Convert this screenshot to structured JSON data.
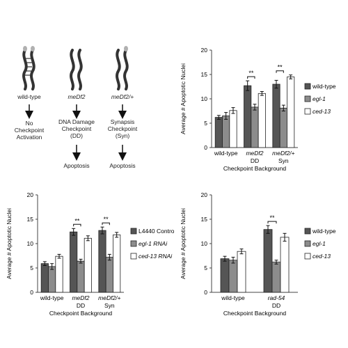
{
  "schematic": {
    "columns": [
      {
        "genotype": "wild-type",
        "italic": false,
        "outcome": [
          "No",
          "Checkpoint",
          "Activation"
        ],
        "final": ""
      },
      {
        "genotype": "meDf2",
        "italic": true,
        "outcome": [
          "DNA Damage",
          "Checkpoint",
          "(DD)"
        ],
        "final": "Apoptosis"
      },
      {
        "genotype": "meDf2/+",
        "italic": true,
        "outcome": [
          "Synapsis",
          "Checkpoint",
          "(Syn)"
        ],
        "final": "Apoptosis"
      }
    ],
    "colors": {
      "worm": "#333333",
      "tip": "#b0b0b0"
    }
  },
  "chart_data": [
    {
      "type": "bar",
      "ylabel": "Average # Apoptotic Nuclei",
      "xlabel": "Checkpoint Background",
      "ylim": [
        0,
        20
      ],
      "yticks": [
        0,
        5,
        10,
        15,
        20
      ],
      "categories": [
        "wild-type",
        "meDf2",
        "meDf2/+"
      ],
      "category_sublabels": [
        "",
        "DD",
        "Syn"
      ],
      "category_italic": [
        false,
        true,
        true
      ],
      "series": [
        {
          "name": "wild-type",
          "italic": false,
          "color": "#555555",
          "values": [
            6.2,
            12.7,
            13.0
          ],
          "errors": [
            0.4,
            1.0,
            0.8
          ]
        },
        {
          "name": "egl-1",
          "italic": true,
          "color": "#8c8c8c",
          "values": [
            6.5,
            8.3,
            8.1
          ],
          "errors": [
            0.7,
            0.6,
            0.6
          ]
        },
        {
          "name": "ced-13",
          "italic": true,
          "color": "#ffffff",
          "values": [
            7.6,
            11.1,
            14.5
          ],
          "errors": [
            0.6,
            0.4,
            0.4
          ]
        }
      ],
      "significance": [
        {
          "category": 1,
          "label": "**"
        },
        {
          "category": 2,
          "label": "**"
        }
      ],
      "legend": "right"
    },
    {
      "type": "bar",
      "ylabel": "Average # Apoptotic Nuclei",
      "xlabel": "Checkpoint Background",
      "ylim": [
        0,
        20
      ],
      "yticks": [
        0,
        5,
        10,
        15,
        20
      ],
      "categories": [
        "wild-type",
        "meDf2",
        "meDf2/+"
      ],
      "category_sublabels": [
        "",
        "DD",
        "Syn"
      ],
      "category_italic": [
        false,
        true,
        true
      ],
      "series": [
        {
          "name": "L4440 Control",
          "italic": false,
          "color": "#555555",
          "values": [
            5.9,
            12.4,
            12.7
          ],
          "errors": [
            0.4,
            0.7,
            0.7
          ]
        },
        {
          "name": "egl-1 RNAi",
          "italic": true,
          "color": "#8c8c8c",
          "values": [
            5.3,
            6.4,
            7.2
          ],
          "errors": [
            0.6,
            0.4,
            0.6
          ]
        },
        {
          "name": "ced-13 RNAi",
          "italic": true,
          "color": "#ffffff",
          "values": [
            7.4,
            11.1,
            11.8
          ],
          "errors": [
            0.4,
            0.5,
            0.5
          ]
        }
      ],
      "significance": [
        {
          "category": 1,
          "label": "**"
        },
        {
          "category": 2,
          "label": "**"
        }
      ],
      "legend": "right"
    },
    {
      "type": "bar",
      "ylabel": "Average # Apoptotic Nuclei",
      "xlabel": "Checkpoint Background",
      "ylim": [
        0,
        20
      ],
      "yticks": [
        0,
        5,
        10,
        15,
        20
      ],
      "categories": [
        "wild-type",
        "rad-54"
      ],
      "category_sublabels": [
        "",
        "DD"
      ],
      "category_italic": [
        false,
        true
      ],
      "series": [
        {
          "name": "wild-type",
          "italic": false,
          "color": "#555555",
          "values": [
            6.9,
            12.9
          ],
          "errors": [
            0.5,
            0.8
          ]
        },
        {
          "name": "egl-1",
          "italic": true,
          "color": "#8c8c8c",
          "values": [
            6.6,
            6.2
          ],
          "errors": [
            0.6,
            0.4
          ]
        },
        {
          "name": "ced-13",
          "italic": true,
          "color": "#ffffff",
          "values": [
            8.4,
            11.3
          ],
          "errors": [
            0.5,
            0.8
          ]
        }
      ],
      "significance": [
        {
          "category": 1,
          "label": "**"
        }
      ],
      "legend": "right"
    }
  ]
}
